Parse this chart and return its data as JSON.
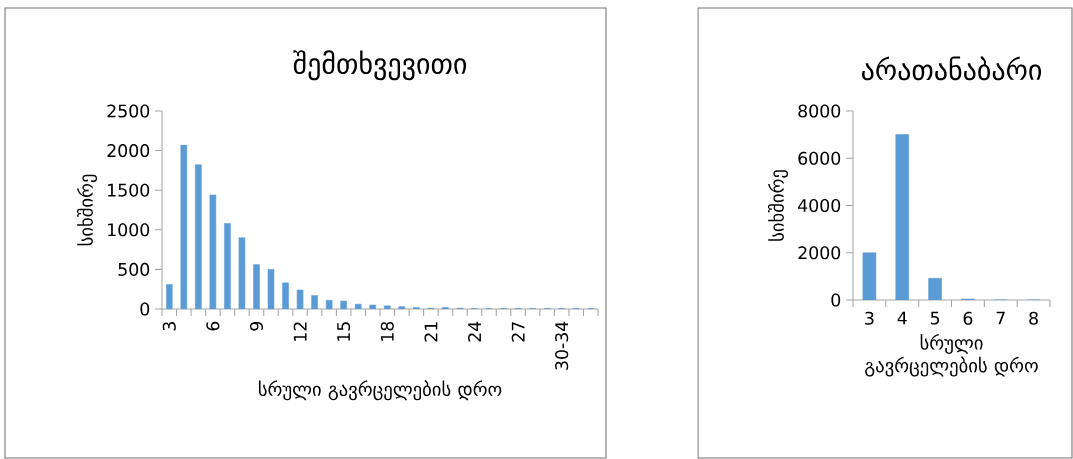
{
  "chart_data": [
    {
      "type": "bar",
      "title": "შემთხვევითი",
      "xlabel": "სრული გავრცელების დრო",
      "ylabel": "სიხშირე",
      "categories": [
        "3",
        null,
        null,
        "6",
        null,
        null,
        "9",
        null,
        null,
        "12",
        null,
        null,
        "15",
        null,
        null,
        "18",
        null,
        null,
        "21",
        null,
        null,
        "24",
        null,
        null,
        "27",
        null,
        null,
        "30-34",
        null,
        null
      ],
      "values": [
        310,
        2070,
        1820,
        1440,
        1080,
        900,
        560,
        500,
        330,
        240,
        170,
        110,
        100,
        60,
        50,
        40,
        30,
        20,
        10,
        20,
        10,
        5,
        5,
        5,
        5,
        5,
        5,
        5,
        5,
        5
      ],
      "color": "#5b9bd5",
      "ylim": [
        0,
        2500
      ],
      "yticks": [
        0,
        500,
        1000,
        1500,
        2000,
        2500
      ]
    },
    {
      "type": "bar",
      "title": "არათანაბარი",
      "xlabel": "სრული გავრცელების დრო",
      "ylabel": "სიხშირე",
      "categories": [
        "3",
        "4",
        "5",
        "6",
        "7",
        "8"
      ],
      "values": [
        2000,
        7000,
        920,
        40,
        0,
        0
      ],
      "color": "#5b9bd5",
      "ylim": [
        0,
        8000
      ],
      "yticks": [
        0,
        2000,
        4000,
        6000,
        8000
      ]
    }
  ]
}
